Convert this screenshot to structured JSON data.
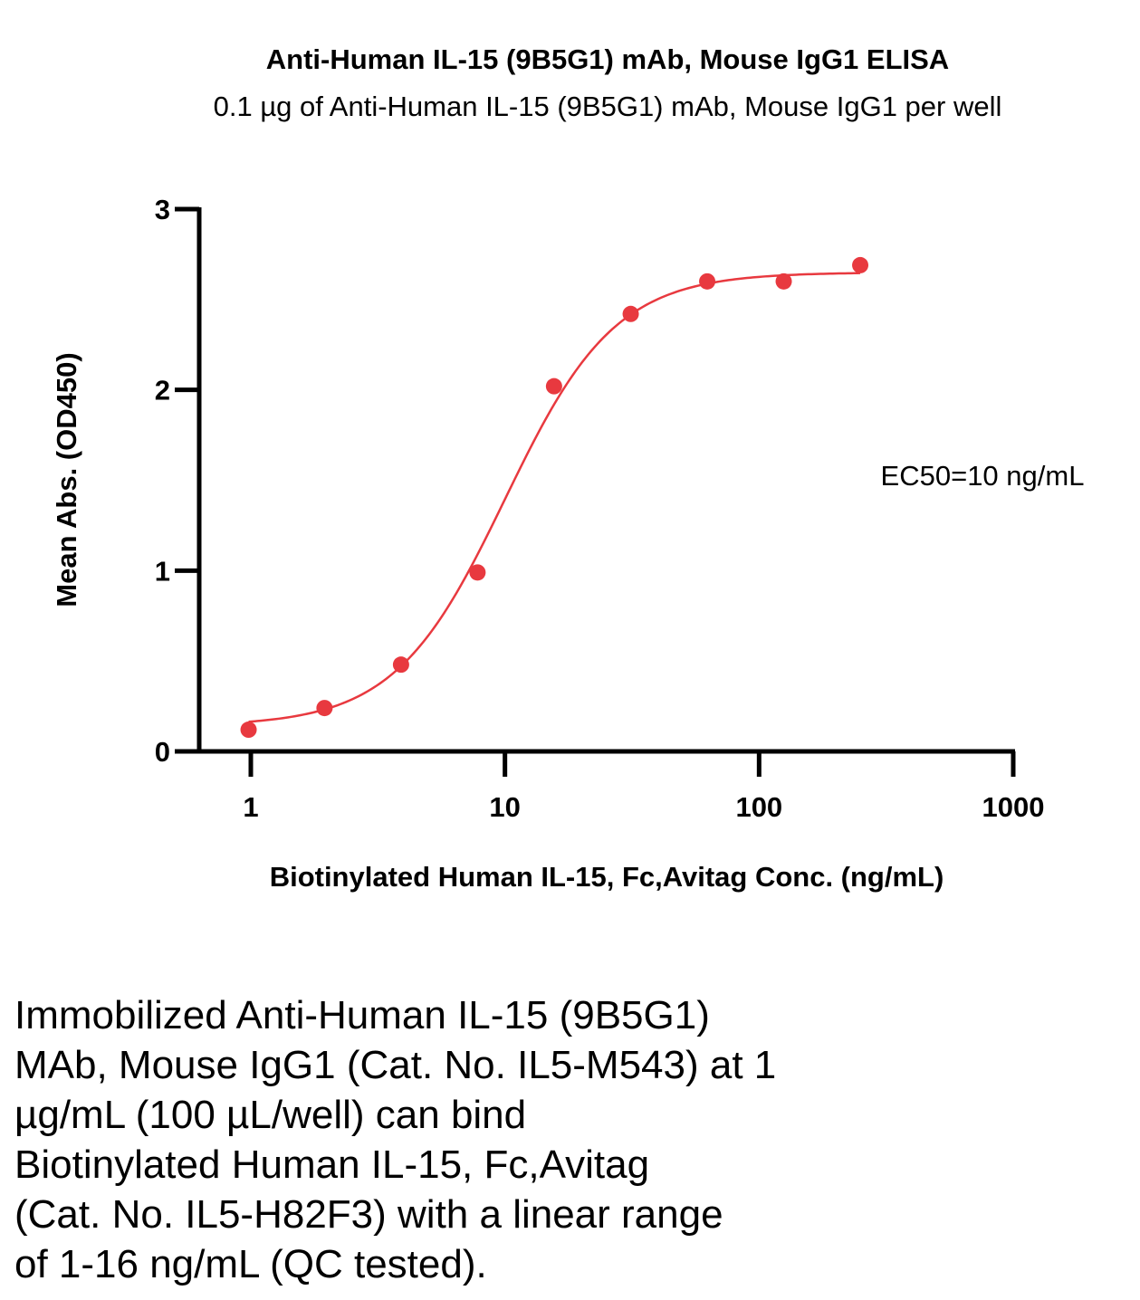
{
  "chart_data": {
    "type": "scatter",
    "title": "Anti-Human IL-15 (9B5G1) mAb, Mouse IgG1 ELISA",
    "subtitle": "0.1 µg of Anti-Human IL-15 (9B5G1) mAb, Mouse IgG1 per well",
    "xlabel": "Biotinylated Human IL-15, Fc,Avitag Conc. (ng/mL)",
    "ylabel": "Mean Abs. (OD450)",
    "xscale": "log",
    "xlim": [
      0.5,
      1000
    ],
    "ylim": [
      0,
      3
    ],
    "xticks": [
      1,
      10,
      100,
      1000
    ],
    "xtick_labels": [
      "1",
      "10",
      "100",
      "1000"
    ],
    "yticks": [
      0,
      1,
      2,
      3
    ],
    "ytick_labels": [
      "0",
      "1",
      "2",
      "3"
    ],
    "series": [
      {
        "color": "#e8393f",
        "x": [
          0.98,
          1.95,
          3.9,
          7.8,
          15.6,
          31.25,
          62.5,
          125,
          250
        ],
        "y": [
          0.12,
          0.24,
          0.48,
          0.99,
          2.02,
          2.42,
          2.6,
          2.6,
          2.69
        ],
        "fit": "4PL"
      }
    ],
    "fit_params": {
      "bottom": 0.14,
      "top": 2.65,
      "ec50": 10,
      "hill": 2.0
    },
    "annotation": "EC50=10 ng/mL",
    "grid": false
  },
  "caption": [
    "Immobilized Anti-Human IL-15 (9B5G1)",
    "MAb, Mouse IgG1 (Cat. No. IL5-M543) at 1",
    "µg/mL (100 µL/well) can bind",
    "Biotinylated Human IL-15, Fc,Avitag",
    "(Cat. No. IL5-H82F3) with a linear range",
    "of 1-16 ng/mL (QC tested)."
  ]
}
